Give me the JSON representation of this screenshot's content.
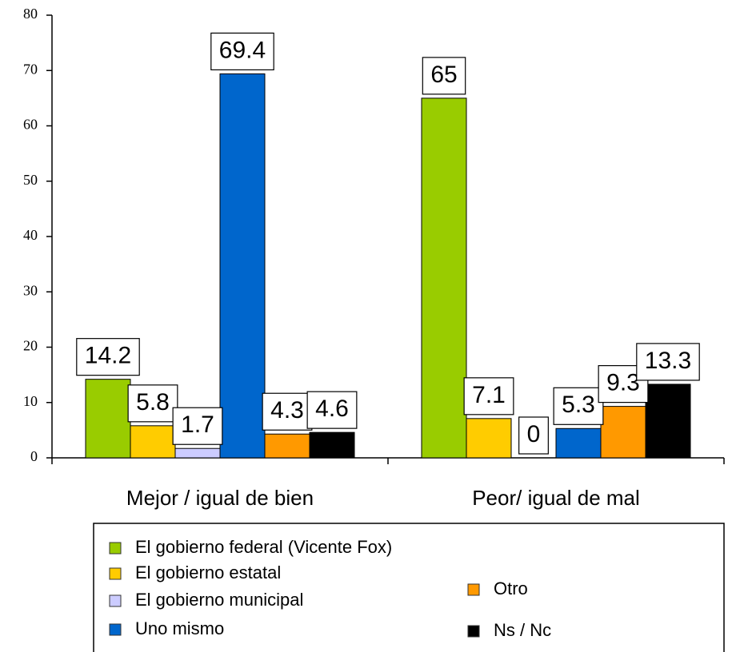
{
  "chart_data": {
    "type": "bar",
    "categories": [
      "Mejor / igual de bien",
      "Peor/ igual de mal"
    ],
    "series": [
      {
        "name": "El gobierno federal (Vicente Fox)",
        "color": "#99cc00",
        "values": [
          14.2,
          65
        ]
      },
      {
        "name": "El gobierno estatal",
        "color": "#ffcc00",
        "values": [
          5.8,
          7.1
        ]
      },
      {
        "name": "El gobierno municipal",
        "color": "#ccccff",
        "values": [
          1.7,
          0
        ]
      },
      {
        "name": "Uno mismo",
        "color": "#0066cc",
        "values": [
          69.4,
          5.3
        ]
      },
      {
        "name": "Otro",
        "color": "#ff9900",
        "values": [
          4.3,
          9.3
        ]
      },
      {
        "name": "Ns / Nc",
        "color": "#000000",
        "values": [
          4.6,
          13.3
        ]
      }
    ],
    "ylim": [
      0,
      80
    ],
    "yticks": [
      0,
      10,
      20,
      30,
      40,
      50,
      60,
      70,
      80
    ],
    "grid": false,
    "legend": "bottom"
  }
}
